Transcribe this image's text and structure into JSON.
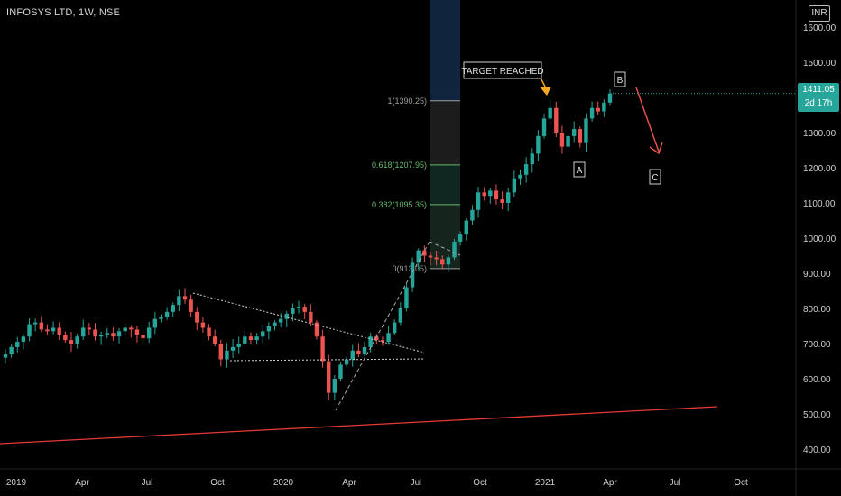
{
  "header": {
    "symbol": "INFOSYS LTD, 1W, NSE",
    "currency": "INR"
  },
  "last_price": {
    "value": "1411.05",
    "countdown": "2d 17h"
  },
  "colors": {
    "up": "#26a69a",
    "down": "#ef5350",
    "support": "#e53935",
    "fib_box": "#1e3a5f",
    "target_arrow": "#f9a825"
  },
  "annotations": {
    "target": "TARGET REACHED",
    "wave_a": "A",
    "wave_b": "B",
    "wave_c": "C"
  },
  "chart_data": {
    "type": "candlestick",
    "title": "",
    "xlabel": "",
    "ylabel": "",
    "ylim": [
      360,
      1640
    ],
    "y_ticks": [
      "400.00",
      "500.00",
      "600.00",
      "700.00",
      "800.00",
      "900.00",
      "1000.00",
      "1100.00",
      "1200.00",
      "1300.00",
      "1400.00",
      "1500.00",
      "1600.00"
    ],
    "x_ticks": [
      "2019",
      "Apr",
      "Jul",
      "Oct",
      "2020",
      "Apr",
      "Jul",
      "Oct",
      "2021",
      "Apr",
      "Jul",
      "Oct"
    ],
    "fib_levels": [
      {
        "label": "1(1390.25)",
        "value": 1390.25,
        "color": "#9e9e9e"
      },
      {
        "label": "0.618(1207.95)",
        "value": 1207.95,
        "color": "#66bb6a"
      },
      {
        "label": "0.382(1095.35)",
        "value": 1095.35,
        "color": "#66bb6a"
      },
      {
        "label": "0(913.05)",
        "value": 913.05,
        "color": "#9e9e9e"
      }
    ],
    "weekly_close_approx": [
      670,
      690,
      705,
      720,
      755,
      760,
      740,
      735,
      745,
      725,
      710,
      700,
      720,
      745,
      740,
      720,
      725,
      730,
      720,
      735,
      745,
      740,
      725,
      715,
      745,
      770,
      775,
      790,
      810,
      835,
      825,
      790,
      760,
      745,
      720,
      700,
      655,
      680,
      690,
      700,
      720,
      710,
      720,
      735,
      750,
      760,
      770,
      785,
      800,
      805,
      790,
      760,
      720,
      650,
      560,
      600,
      640,
      655,
      680,
      670,
      690,
      720,
      710,
      705,
      730,
      760,
      800,
      860,
      930,
      965,
      950,
      945,
      940,
      925,
      945,
      990,
      1010,
      1050,
      1080,
      1130,
      1120,
      1135,
      1110,
      1100,
      1130,
      1170,
      1180,
      1210,
      1240,
      1290,
      1340,
      1370,
      1300,
      1260,
      1290,
      1310,
      1270,
      1340,
      1370,
      1360,
      1385,
      1411.05
    ]
  }
}
